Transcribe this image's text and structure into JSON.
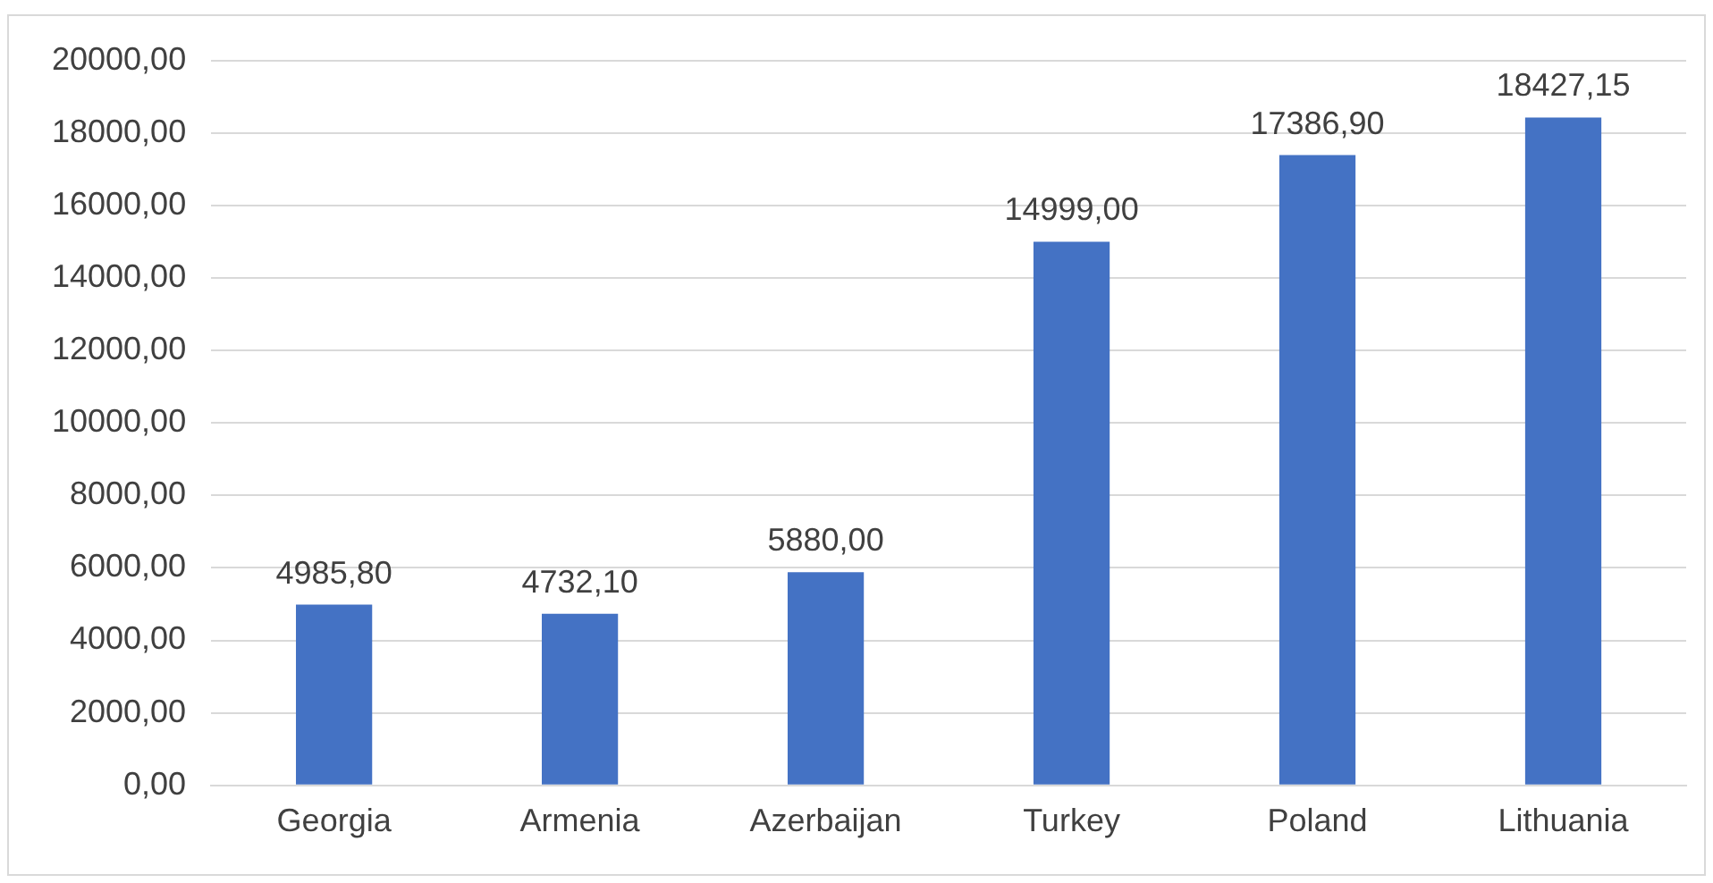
{
  "chart_data": {
    "type": "bar",
    "categories": [
      "Georgia",
      "Armenia",
      "Azerbaijan",
      "Turkey",
      "Poland",
      "Lithuania"
    ],
    "values": [
      4985.8,
      4732.1,
      5880,
      14999,
      17386.9,
      18427.15
    ],
    "value_labels": [
      "4985,80",
      "4732,10",
      "5880,00",
      "14999,00",
      "17386,90",
      "18427,15"
    ],
    "color": "#4472c4",
    "ylim": [
      0,
      20000
    ],
    "yticks": [
      {
        "value": 0,
        "label": "0,00"
      },
      {
        "value": 2000,
        "label": "2000,00"
      },
      {
        "value": 4000,
        "label": "4000,00"
      },
      {
        "value": 6000,
        "label": "6000,00"
      },
      {
        "value": 8000,
        "label": "8000,00"
      },
      {
        "value": 10000,
        "label": "10000,00"
      },
      {
        "value": 12000,
        "label": "12000,00"
      },
      {
        "value": 14000,
        "label": "14000,00"
      },
      {
        "value": 16000,
        "label": "16000,00"
      },
      {
        "value": 18000,
        "label": "18000,00"
      },
      {
        "value": 20000,
        "label": "20000,00"
      }
    ],
    "grid": "y"
  }
}
